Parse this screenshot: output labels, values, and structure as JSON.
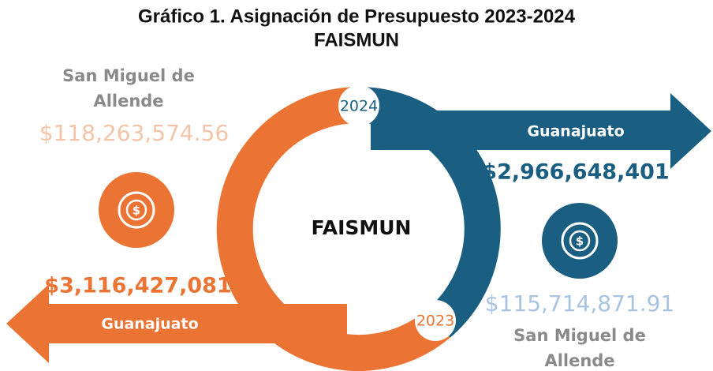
{
  "title": [
    "Gráfico 1. Asignación de Presupuesto 2023-2024",
    "FAISMUN"
  ],
  "center_label": "FAISMUN",
  "years": [
    {
      "year": "2024",
      "state": "Guanajuato",
      "state_amount": "$2,966,648,401",
      "municipality": [
        "San Miguel de",
        "Allende"
      ],
      "municipality_amount": "$115,714,871.91"
    },
    {
      "year": "2023",
      "state": "Guanajuato",
      "state_amount": "$3,116,427,081",
      "municipality": [
        "San Miguel de",
        "Allende"
      ],
      "municipality_amount": "$118,263,574.56"
    }
  ]
}
